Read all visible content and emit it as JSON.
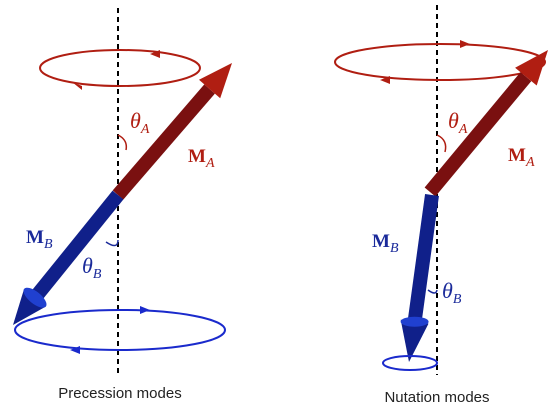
{
  "panels": [
    {
      "theta_a": {
        "symbol": "θ",
        "subscript": "A"
      },
      "m_a": {
        "symbol": "M",
        "subscript": "A"
      },
      "m_b": {
        "symbol": "M",
        "subscript": "B"
      },
      "theta_b": {
        "symbol": "θ",
        "subscript": "B"
      },
      "caption": "Precession modes"
    },
    {
      "theta_a": {
        "symbol": "θ",
        "subscript": "A"
      },
      "m_a": {
        "symbol": "M",
        "subscript": "A"
      },
      "m_b": {
        "symbol": "M",
        "subscript": "B"
      },
      "theta_b": {
        "symbol": "θ",
        "subscript": "B"
      },
      "caption": "Nutation modes"
    }
  ]
}
